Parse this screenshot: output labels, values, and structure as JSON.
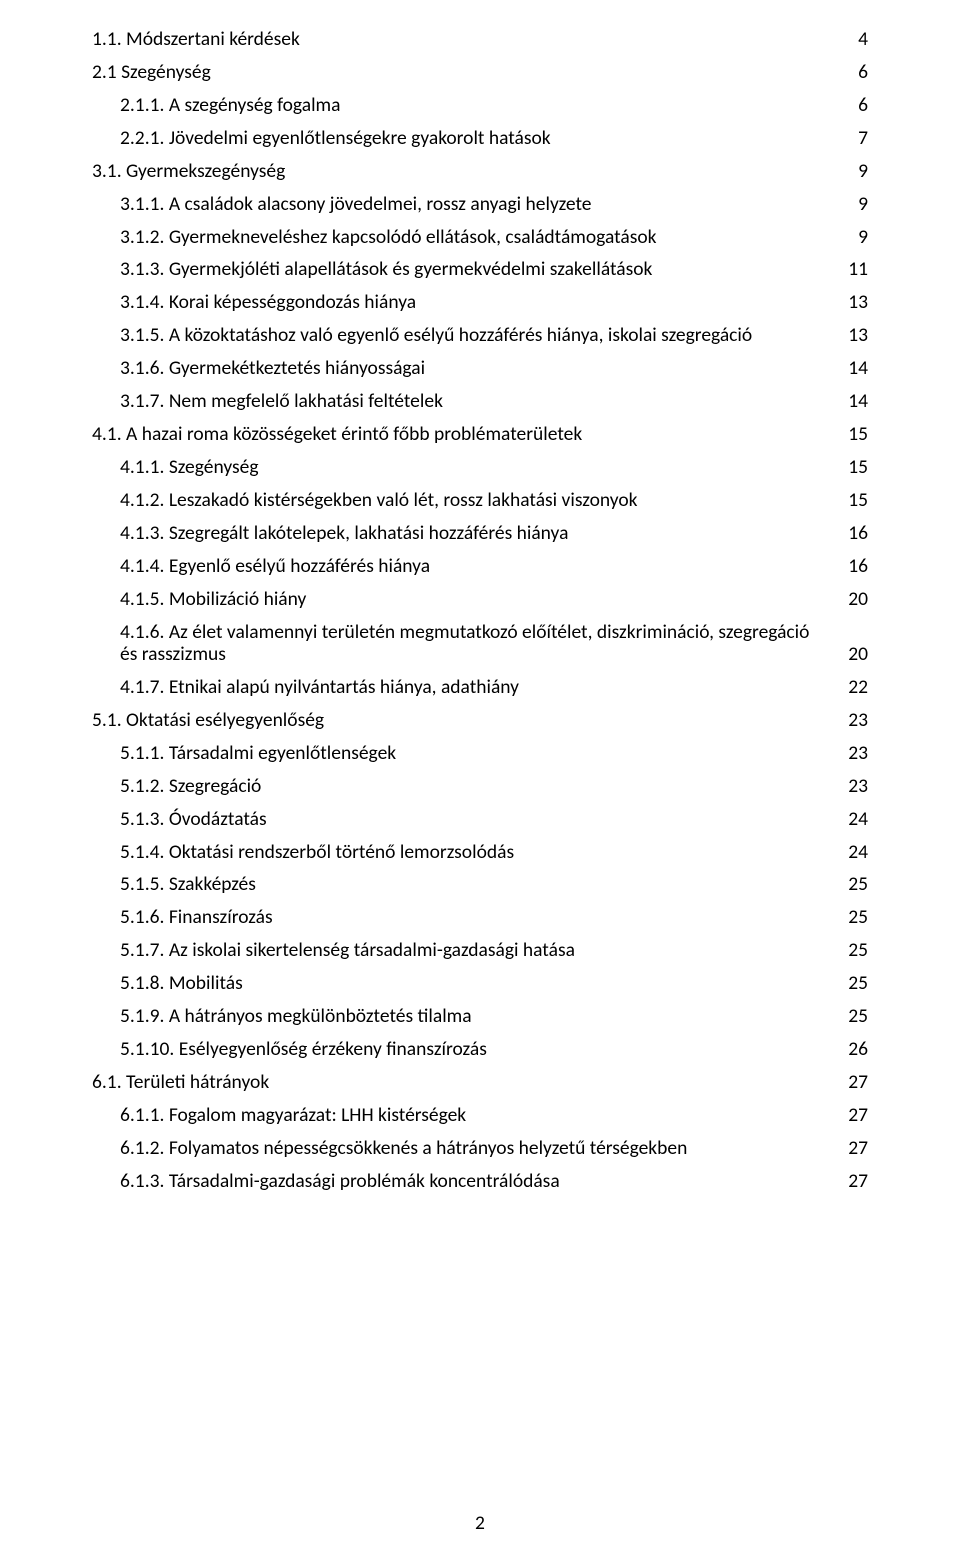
{
  "typography": {
    "font_family": "Calibri",
    "font_size_pt": 15,
    "line_color": "#000000",
    "background_color": "#ffffff",
    "leader_char": "."
  },
  "page_number": "2",
  "toc": [
    {
      "indent": 0,
      "label": "1.1. Módszertani kérdések",
      "page": "4"
    },
    {
      "indent": 0,
      "label": "2.1 Szegénység",
      "page": "6"
    },
    {
      "indent": 1,
      "label": "2.1.1. A szegénység fogalma",
      "page": "6"
    },
    {
      "indent": 1,
      "label": "2.2.1. Jövedelmi egyenlőtlenségekre gyakorolt hatások",
      "page": "7"
    },
    {
      "indent": 0,
      "label": "3.1. Gyermekszegénység",
      "page": "9"
    },
    {
      "indent": 1,
      "label": "3.1.1. A családok alacsony jövedelmei, rossz anyagi helyzete",
      "page": "9"
    },
    {
      "indent": 1,
      "label": "3.1.2. Gyermekneveléshez kapcsolódó ellátások, családtámogatások",
      "page": "9"
    },
    {
      "indent": 1,
      "label": "3.1.3. Gyermekjóléti alapellátások és gyermekvédelmi szakellátások",
      "page": "11"
    },
    {
      "indent": 1,
      "label": "3.1.4. Korai képességgondozás hiánya",
      "page": "13"
    },
    {
      "indent": 1,
      "label": "3.1.5. A közoktatáshoz való egyenlő esélyű hozzáférés hiánya, iskolai szegregáció",
      "page": "13"
    },
    {
      "indent": 1,
      "label": "3.1.6. Gyermekétkeztetés hiányosságai",
      "page": "14"
    },
    {
      "indent": 1,
      "label": "3.1.7. Nem megfelelő lakhatási feltételek",
      "page": "14"
    },
    {
      "indent": 0,
      "label": "4.1. A hazai roma közösségeket érintő főbb problématerületek",
      "page": "15"
    },
    {
      "indent": 1,
      "label": "4.1.1. Szegénység",
      "page": "15"
    },
    {
      "indent": 1,
      "label": "4.1.2. Leszakadó kistérségekben való lét, rossz lakhatási viszonyok",
      "page": "15"
    },
    {
      "indent": 1,
      "label": "4.1.3. Szegregált lakótelepek, lakhatási hozzáférés hiánya",
      "page": "16"
    },
    {
      "indent": 1,
      "label": "4.1.4. Egyenlő esélyű hozzáférés hiánya",
      "page": "16"
    },
    {
      "indent": 1,
      "label": "4.1.5. Mobilizáció hiány",
      "page": "20"
    },
    {
      "indent": 1,
      "wrap": true,
      "label_line1": "4.1.6. Az élet valamennyi területén megmutatkozó előítélet, diszkrimináció, szegregáció",
      "label_line2": "és rasszizmus",
      "page": "20"
    },
    {
      "indent": 1,
      "label": "4.1.7. Etnikai alapú nyilvántartás hiánya, adathiány",
      "page": "22"
    },
    {
      "indent": 0,
      "label": "5.1. Oktatási esélyegyenlőség",
      "page": "23"
    },
    {
      "indent": 1,
      "label": "5.1.1. Társadalmi egyenlőtlenségek",
      "page": "23"
    },
    {
      "indent": 1,
      "label": "5.1.2. Szegregáció",
      "page": "23"
    },
    {
      "indent": 1,
      "label": "5.1.3. Óvodáztatás",
      "page": "24"
    },
    {
      "indent": 1,
      "label": "5.1.4. Oktatási rendszerből történő lemorzsolódás",
      "page": "24"
    },
    {
      "indent": 1,
      "label": "5.1.5. Szakképzés",
      "page": "25"
    },
    {
      "indent": 1,
      "label": "5.1.6. Finanszírozás",
      "page": "25"
    },
    {
      "indent": 1,
      "label": "5.1.7. Az iskolai sikertelenség társadalmi-gazdasági hatása",
      "page": "25"
    },
    {
      "indent": 1,
      "label": "5.1.8. Mobilitás",
      "page": "25"
    },
    {
      "indent": 1,
      "label": "5.1.9. A hátrányos megkülönböztetés tilalma",
      "page": "25"
    },
    {
      "indent": 1,
      "label": "5.1.10. Esélyegyenlőség érzékeny finanszírozás",
      "page": "26"
    },
    {
      "indent": 0,
      "label": "6.1. Területi hátrányok",
      "page": "27"
    },
    {
      "indent": 1,
      "label": "6.1.1. Fogalom magyarázat: LHH kistérségek",
      "page": "27"
    },
    {
      "indent": 1,
      "label": "6.1.2. Folyamatos népességcsökkenés a hátrányos helyzetű térségekben",
      "page": "27"
    },
    {
      "indent": 1,
      "label": "6.1.3. Társadalmi-gazdasági problémák koncentrálódása",
      "page": "27"
    }
  ]
}
